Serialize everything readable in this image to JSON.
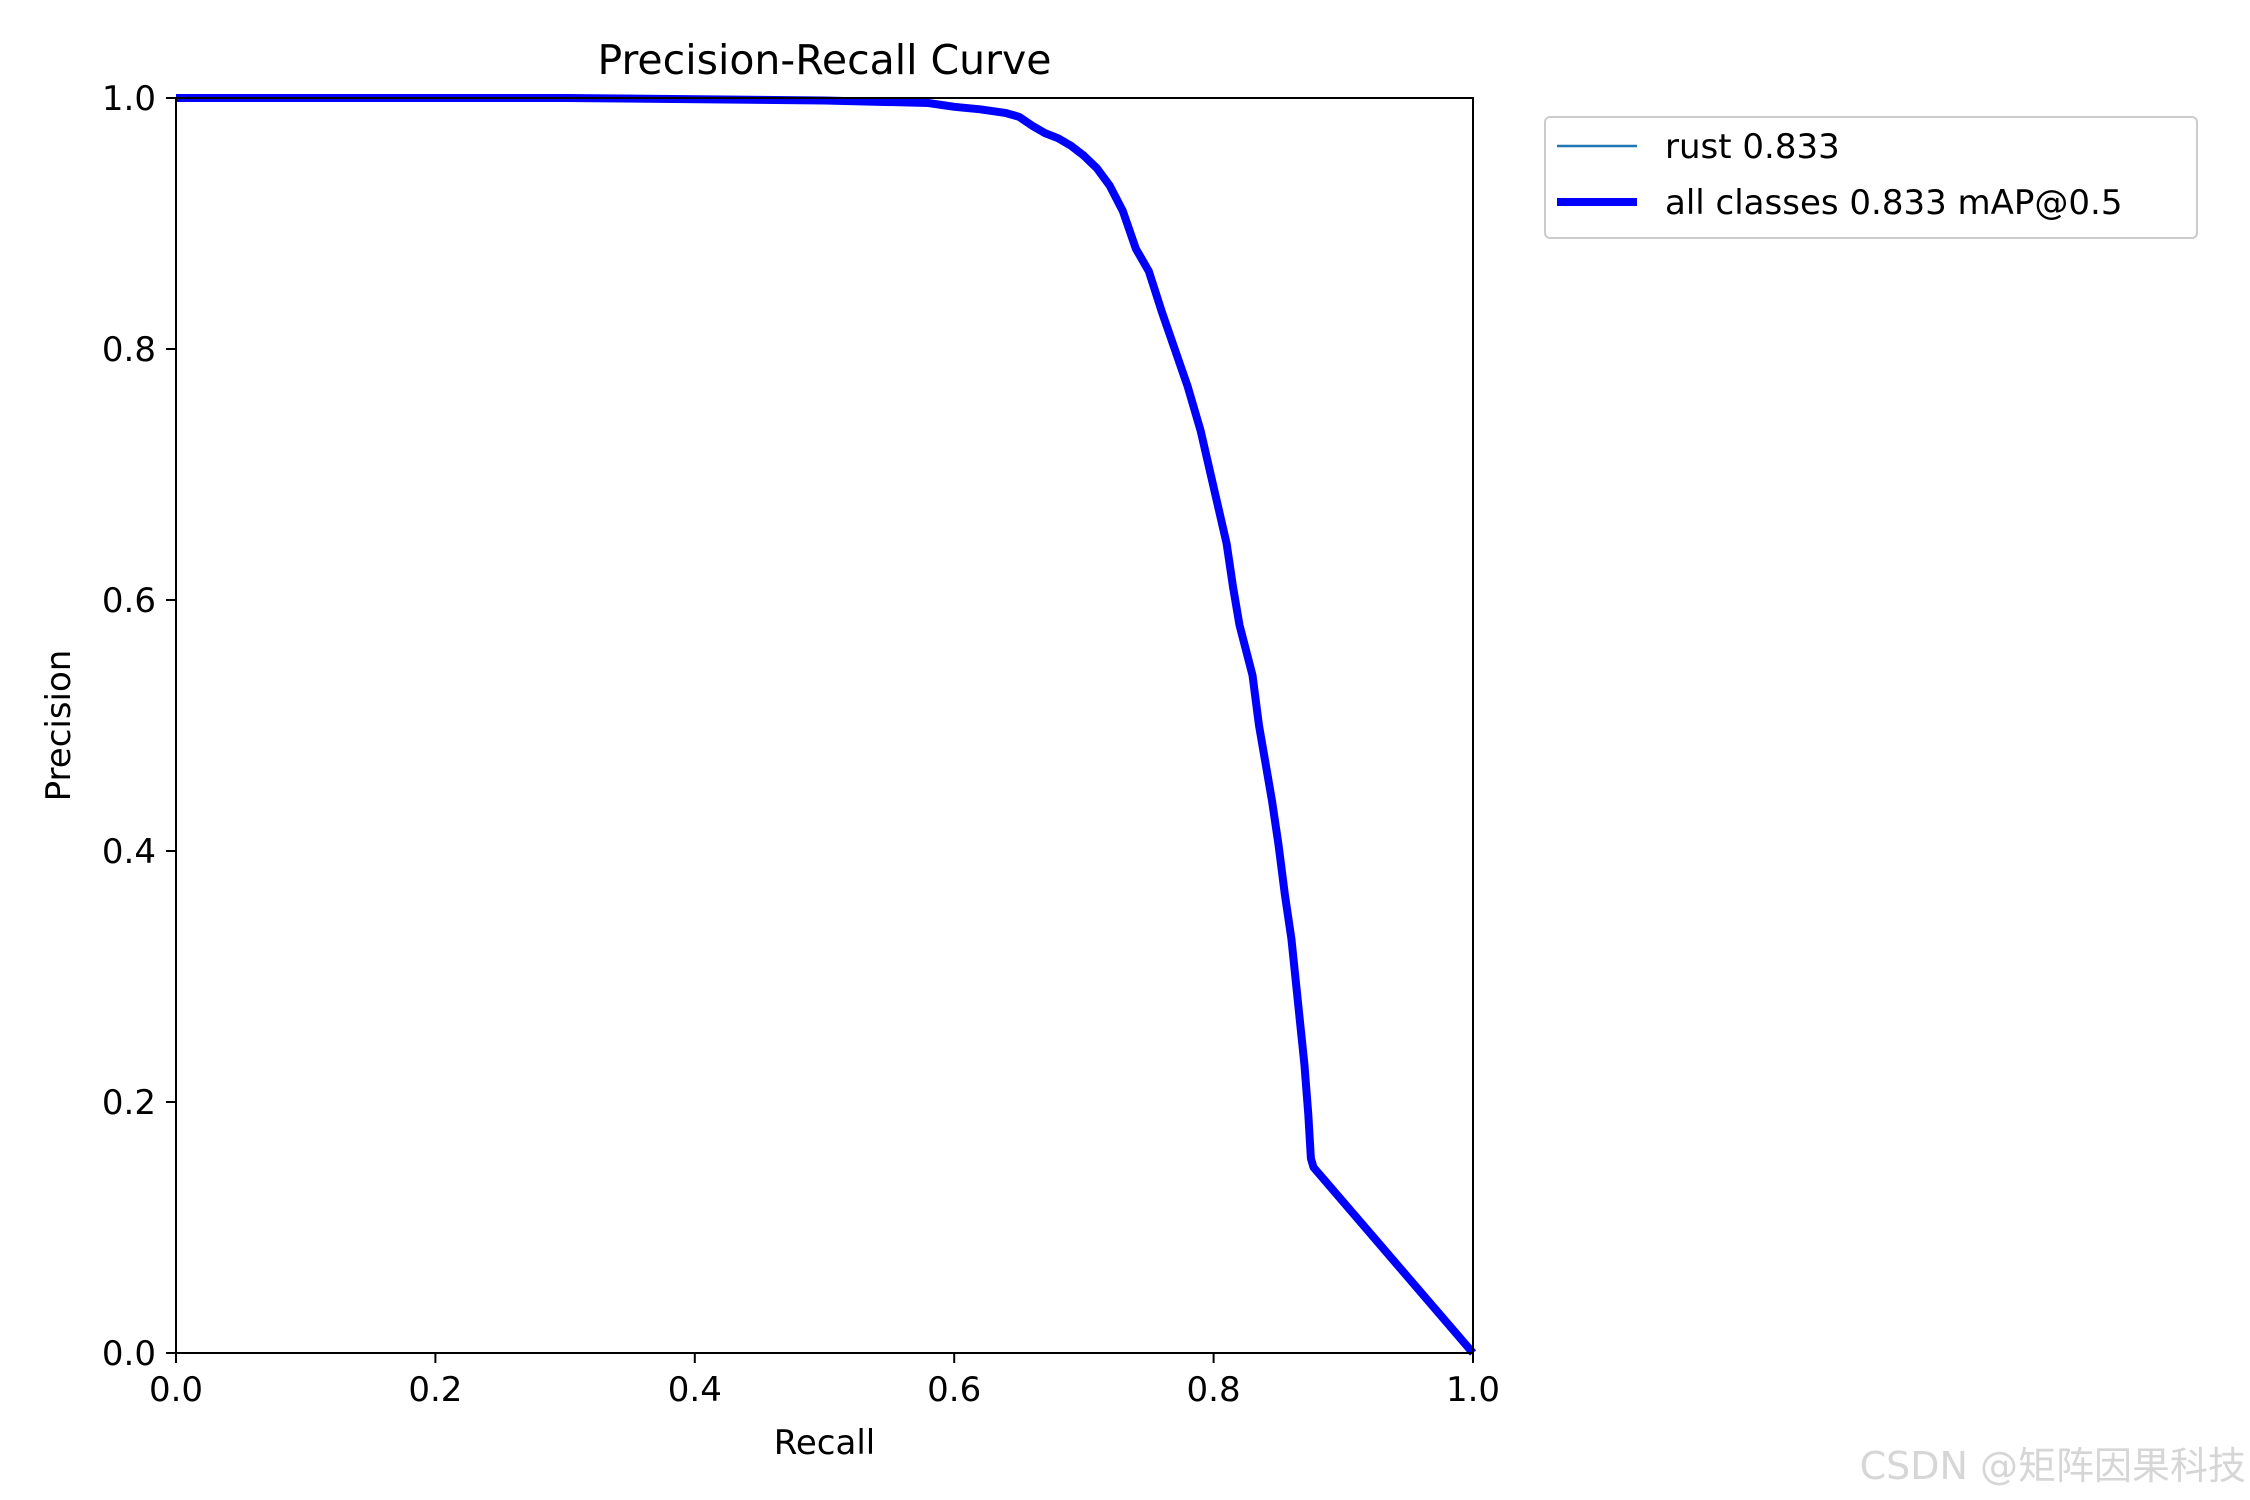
{
  "watermark": "CSDN @矩阵因果科技",
  "chart_data": {
    "type": "line",
    "title": "Precision-Recall Curve",
    "xlabel": "Recall",
    "ylabel": "Precision",
    "xlim": [
      0.0,
      1.0
    ],
    "ylim": [
      0.0,
      1.0
    ],
    "xticks": [
      "0.0",
      "0.2",
      "0.4",
      "0.6",
      "0.8",
      "1.0"
    ],
    "yticks": [
      "0.0",
      "0.2",
      "0.4",
      "0.6",
      "0.8",
      "1.0"
    ],
    "grid": false,
    "legend_position": "outside-top-right",
    "series": [
      {
        "name": "rust 0.833",
        "color": "#1f77b4",
        "linewidth": "thin",
        "x": [
          0.0,
          0.3,
          0.5,
          0.58,
          0.6,
          0.62,
          0.64,
          0.65,
          0.66,
          0.67,
          0.68,
          0.69,
          0.7,
          0.71,
          0.72,
          0.73,
          0.74,
          0.75,
          0.76,
          0.77,
          0.78,
          0.79,
          0.8,
          0.81,
          0.815,
          0.82,
          0.83,
          0.835,
          0.84,
          0.845,
          0.85,
          0.855,
          0.86,
          0.865,
          0.87,
          0.873,
          0.875,
          0.877,
          1.0
        ],
        "y": [
          1.0,
          1.0,
          0.998,
          0.996,
          0.993,
          0.991,
          0.988,
          0.985,
          0.978,
          0.972,
          0.968,
          0.962,
          0.954,
          0.944,
          0.93,
          0.91,
          0.88,
          0.862,
          0.83,
          0.8,
          0.77,
          0.735,
          0.69,
          0.645,
          0.61,
          0.58,
          0.54,
          0.5,
          0.47,
          0.44,
          0.405,
          0.365,
          0.33,
          0.28,
          0.23,
          0.19,
          0.155,
          0.148,
          0.0
        ]
      },
      {
        "name": "all classes 0.833 mAP@0.5",
        "color": "#0000ff",
        "linewidth": "thick",
        "x": [
          0.0,
          0.3,
          0.5,
          0.58,
          0.6,
          0.62,
          0.64,
          0.65,
          0.66,
          0.67,
          0.68,
          0.69,
          0.7,
          0.71,
          0.72,
          0.73,
          0.74,
          0.75,
          0.76,
          0.77,
          0.78,
          0.79,
          0.8,
          0.81,
          0.815,
          0.82,
          0.83,
          0.835,
          0.84,
          0.845,
          0.85,
          0.855,
          0.86,
          0.865,
          0.87,
          0.873,
          0.875,
          0.877,
          1.0
        ],
        "y": [
          1.0,
          1.0,
          0.998,
          0.996,
          0.993,
          0.991,
          0.988,
          0.985,
          0.978,
          0.972,
          0.968,
          0.962,
          0.954,
          0.944,
          0.93,
          0.91,
          0.88,
          0.862,
          0.83,
          0.8,
          0.77,
          0.735,
          0.69,
          0.645,
          0.61,
          0.58,
          0.54,
          0.5,
          0.47,
          0.44,
          0.405,
          0.365,
          0.33,
          0.28,
          0.23,
          0.19,
          0.155,
          0.148,
          0.0
        ]
      }
    ]
  }
}
